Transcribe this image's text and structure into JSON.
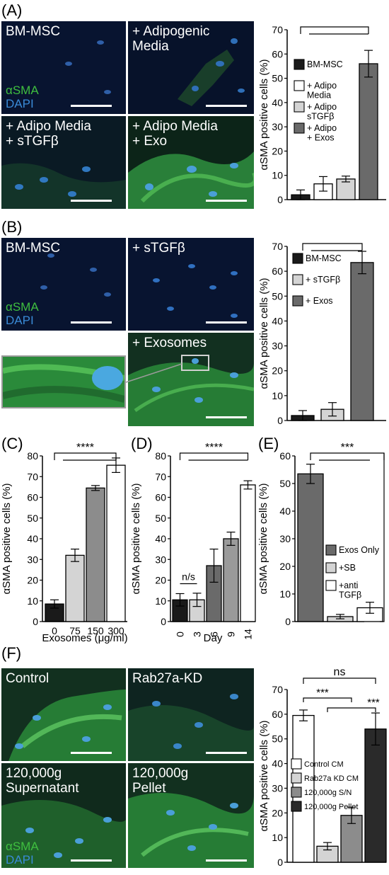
{
  "panels": {
    "A": {
      "letter": "(A)",
      "images": [
        {
          "label": "BM-MSC",
          "type": "dim"
        },
        {
          "label": "+ Adipogenic\nMedia",
          "type": "dim-cells"
        },
        {
          "label": "+ Adipo Media\n+ sTGFβ",
          "type": "mid"
        },
        {
          "label": "+ Adipo Media\n+ Exo",
          "type": "bright"
        }
      ],
      "stain": {
        "a": "αSMA",
        "d": "DAPI"
      }
    },
    "B": {
      "letter": "(B)",
      "images": [
        {
          "label": "BM-MSC",
          "type": "dim"
        },
        {
          "label": "+ sTGFβ",
          "type": "dim"
        },
        {
          "label": "+ Exosomes",
          "type": "bright"
        }
      ],
      "stain": {
        "a": "αSMA",
        "d": "DAPI"
      }
    },
    "C": {
      "letter": "(C)"
    },
    "D": {
      "letter": "(D)"
    },
    "E": {
      "letter": "(E)"
    },
    "F": {
      "letter": "(F)",
      "images": [
        {
          "label": "Control",
          "type": "bright"
        },
        {
          "label": "Rab27a-KD",
          "type": "dim-cells"
        },
        {
          "label": "120,000g\nSupernatant",
          "type": "mid"
        },
        {
          "label": "120,000g\nPellet",
          "type": "bright"
        }
      ],
      "stain": {
        "a": "αSMA",
        "d": "DAPI"
      }
    }
  },
  "chart_data": [
    {
      "id": "A",
      "type": "bar",
      "ylabel": "αSMA positive cells (%)",
      "ylim": [
        0,
        70
      ],
      "yticks": [
        0,
        10,
        20,
        30,
        40,
        50,
        60,
        70
      ],
      "categories": [
        "BM-MSC",
        "+ Adipo Media",
        "+ Adipo sTGFβ",
        "+ Adipo Exos"
      ],
      "values": [
        2,
        6.5,
        8.5,
        56
      ],
      "errors": [
        2,
        3,
        1.2,
        5.5
      ],
      "colors": [
        "#1a1a1a",
        "#ffffff",
        "#d4d4d4",
        "#6a6a6a"
      ],
      "legend": [
        "BM-MSC",
        "+ Adipo\nMedia",
        "+ Adipo\nsTGFβ",
        "+ Adipo\n+ Exos"
      ],
      "significance": "***"
    },
    {
      "id": "B",
      "type": "bar",
      "ylabel": "αSMA positive cells (%)",
      "ylim": [
        0,
        70
      ],
      "yticks": [
        0,
        10,
        20,
        30,
        40,
        50,
        60,
        70
      ],
      "categories": [
        "BM-MSC",
        "+ sTGFβ",
        "+ Exos"
      ],
      "values": [
        2,
        4.5,
        63.5
      ],
      "errors": [
        2,
        2.7,
        4.5
      ],
      "colors": [
        "#1a1a1a",
        "#d4d4d4",
        "#6a6a6a"
      ],
      "legend": [
        "BM-MSC",
        "+ sTGFβ",
        "+ Exos"
      ],
      "significance": "***"
    },
    {
      "id": "C",
      "type": "bar",
      "ylabel": "αSMA positive cells (%)",
      "xlabel": "Exosomes (μg/ml)",
      "ylim": [
        0,
        80
      ],
      "yticks": [
        0,
        10,
        20,
        30,
        40,
        50,
        60,
        70,
        80
      ],
      "categories": [
        "0",
        "75",
        "150",
        "300"
      ],
      "values": [
        8.5,
        32,
        64.5,
        75.5
      ],
      "errors": [
        2,
        3,
        1.2,
        3.5
      ],
      "colors": [
        "#1a1a1a",
        "#d4d4d4",
        "#8c8c8c",
        "#ffffff"
      ],
      "significance": "****"
    },
    {
      "id": "D",
      "type": "bar",
      "ylabel": "αSMA positive cells (%)",
      "xlabel": "Day",
      "ylim": [
        0,
        80
      ],
      "yticks": [
        0,
        10,
        20,
        30,
        40,
        50,
        60,
        70,
        80
      ],
      "categories": [
        "0",
        "3",
        "6",
        "9",
        "14"
      ],
      "values": [
        10.5,
        10.5,
        27,
        40,
        66
      ],
      "errors": [
        3,
        3.2,
        8,
        3.2,
        2
      ],
      "colors": [
        "#1a1a1a",
        "#d4d4d4",
        "#6a6a6a",
        "#9a9a9a",
        "#ffffff"
      ],
      "significance": "****",
      "ns_label": "n/s"
    },
    {
      "id": "E",
      "type": "bar",
      "ylabel": "αSMA positive cells (%)",
      "ylim": [
        0,
        60
      ],
      "yticks": [
        0,
        10,
        20,
        30,
        40,
        50,
        60
      ],
      "categories": [
        "Exos Only",
        "+SB",
        "+anti TGFβ"
      ],
      "values": [
        53.5,
        1.8,
        5
      ],
      "errors": [
        3.5,
        0.8,
        2
      ],
      "colors": [
        "#6a6a6a",
        "#d4d4d4",
        "#ffffff"
      ],
      "legend": [
        "Exos Only",
        "+SB",
        "+anti\nTGFβ"
      ],
      "significance": "***"
    },
    {
      "id": "F",
      "type": "bar",
      "ylabel": "αSMA positive cells (%)",
      "ylim": [
        0,
        70
      ],
      "yticks": [
        0,
        10,
        20,
        30,
        40,
        50,
        60,
        70
      ],
      "categories": [
        "Control CM",
        "Rab27a KD CM",
        "120,000g S/N",
        "120,000g Pellet"
      ],
      "values": [
        59.5,
        6.5,
        19,
        54
      ],
      "errors": [
        2.2,
        1.5,
        3.3,
        6.5
      ],
      "colors": [
        "#ffffff",
        "#d4d4d4",
        "#8c8c8c",
        "#2a2a2a"
      ],
      "legend": [
        "Control CM",
        "Rab27a KD CM",
        "120,000g S/N",
        "120,000g Pellet"
      ],
      "significance": [
        "ns",
        "***",
        "***"
      ]
    }
  ]
}
